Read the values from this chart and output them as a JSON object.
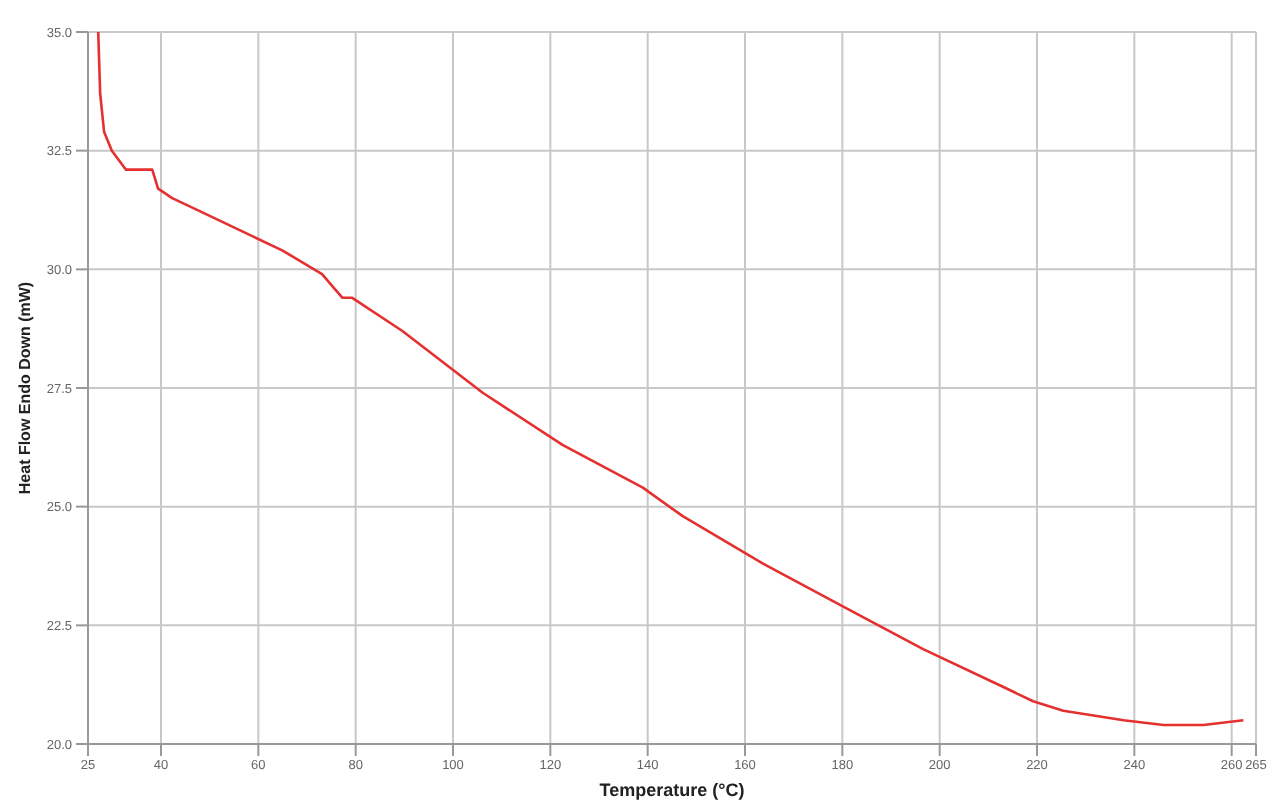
{
  "chart_data": {
    "type": "line",
    "xlabel": "Temperature (°C)",
    "ylabel": "Heat Flow Endo Down (mW)",
    "x": [
      27.1,
      27.5,
      28.3,
      29.9,
      32.8,
      35.3,
      38.2,
      39.4,
      42.3,
      48.5,
      56.7,
      64.9,
      73.1,
      75.6,
      77.3,
      79.3,
      89.6,
      106.1,
      122.5,
      139.0,
      147.2,
      163.7,
      180.1,
      196.6,
      213.1,
      219.2,
      225.4,
      237.8,
      246.0,
      254.2,
      262.4
    ],
    "series": [
      {
        "color": "#e53030",
        "values": [
          35.0,
          33.7,
          32.9,
          32.5,
          32.1,
          32.1,
          32.1,
          31.7,
          31.5,
          31.2,
          30.8,
          30.4,
          29.9,
          29.6,
          29.4,
          29.4,
          28.7,
          27.4,
          26.3,
          25.4,
          24.8,
          23.8,
          22.9,
          22.0,
          21.2,
          20.9,
          20.7,
          20.5,
          20.4,
          20.4,
          20.5
        ]
      }
    ],
    "xlim": [
      25,
      265
    ],
    "xticks": [
      25,
      40,
      60,
      80,
      100,
      120,
      140,
      160,
      180,
      200,
      220,
      240,
      260,
      265
    ],
    "ylim": [
      20,
      35
    ],
    "yticks": [
      {
        "value": 20,
        "label": "20.0"
      },
      {
        "value": 22.5,
        "label": "22.5"
      },
      {
        "value": 25,
        "label": "25.0"
      },
      {
        "value": 27.5,
        "label": "27.5"
      },
      {
        "value": 30,
        "label": "30.0"
      },
      {
        "value": 32.5,
        "label": "32.5"
      },
      {
        "value": 35,
        "label": "35.0"
      }
    ],
    "grid": true,
    "legend": false,
    "marker": "none",
    "line_style": "solid"
  }
}
